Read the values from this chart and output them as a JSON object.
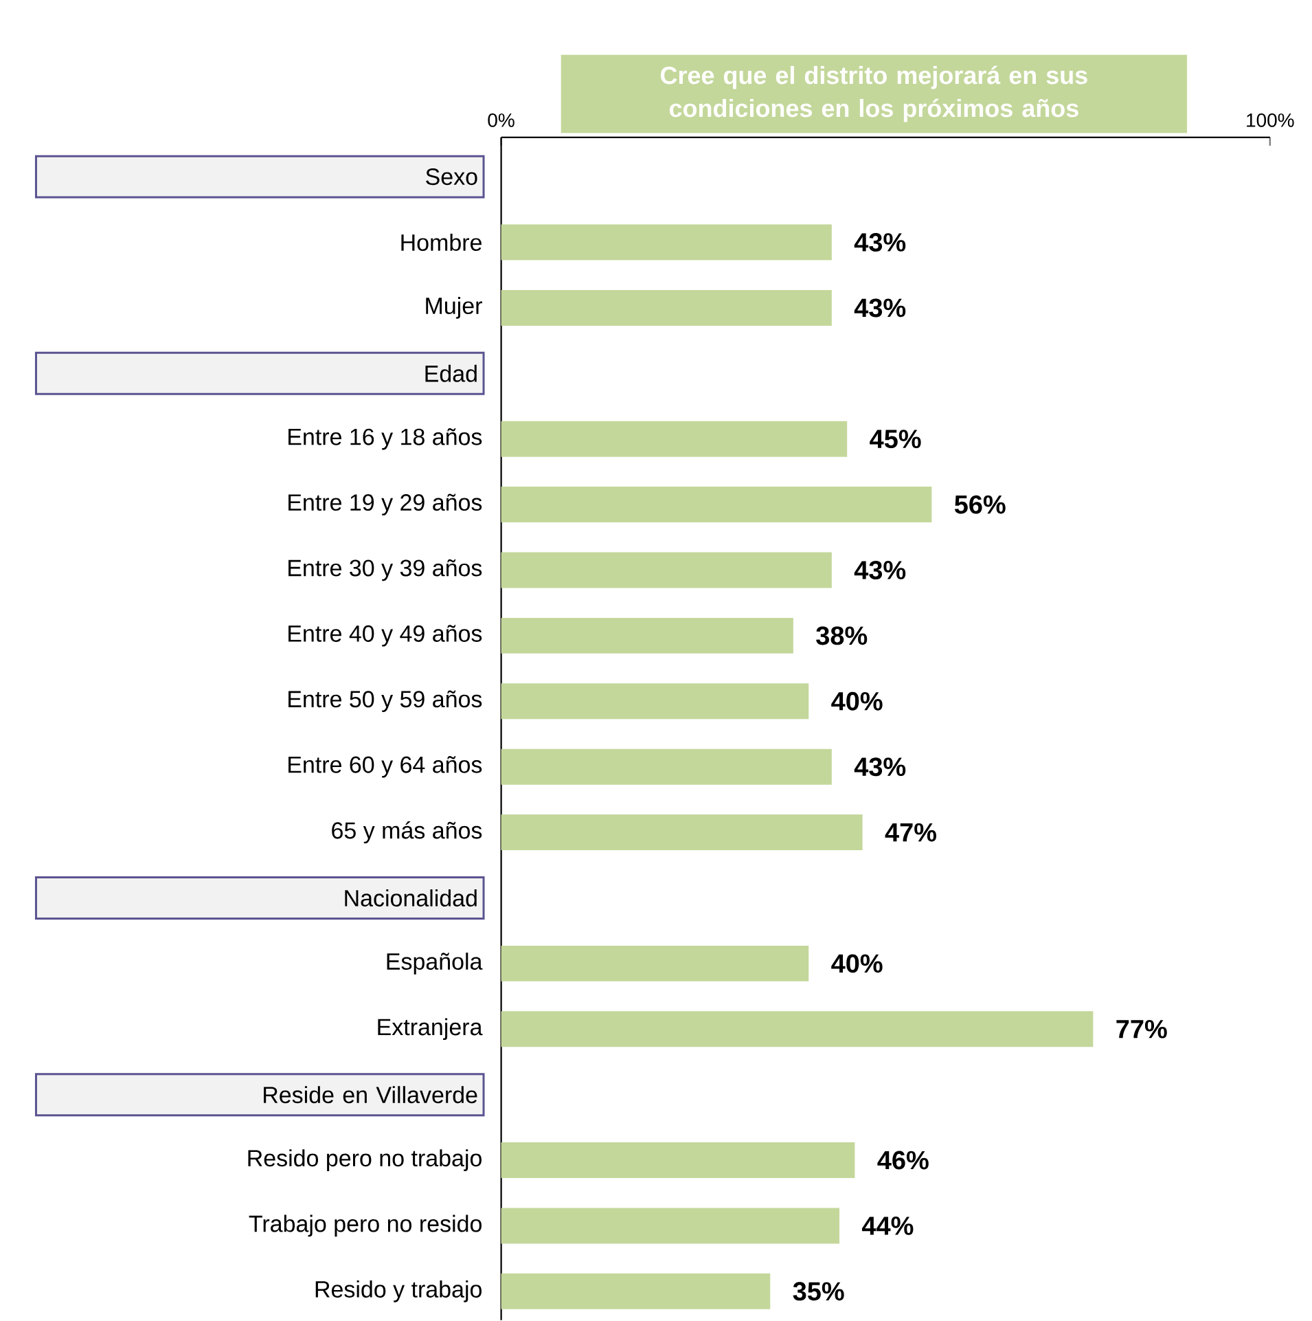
{
  "chart_data": {
    "type": "bar",
    "orientation": "horizontal",
    "title": "Cree que el distrito mejorará en sus condiciones en los próximos años",
    "categories": [
      "Sexo",
      "Hombre",
      "Mujer",
      "Edad",
      "Entre 16 y 18 años",
      "Entre 19 y 29 años",
      "Entre 30 y 39 años",
      "Entre 40 y 49 años",
      "Entre 50 y 59 años",
      "Entre 60 y 64 años",
      "65 y más años",
      "Nacionalidad",
      "Española",
      "Extranjera",
      "Reside en Villaverde",
      "Resido pero no trabajo",
      "Trabajo pero no resido",
      "Resido y trabajo"
    ],
    "values": [
      null,
      43,
      43,
      null,
      45,
      56,
      43,
      38,
      40,
      43,
      47,
      null,
      40,
      77,
      null,
      46,
      44,
      35
    ],
    "value_labels": [
      null,
      "43%",
      "43%",
      null,
      "45%",
      "56%",
      "43%",
      "38%",
      "40%",
      "43%",
      "47%",
      null,
      "40%",
      "77%",
      null,
      "46%",
      "44%",
      "35%"
    ],
    "color": "#c4d79b",
    "xlim": [
      0,
      100
    ],
    "xticks": [
      {
        "value": 0,
        "label": "0%"
      },
      {
        "value": 100,
        "label": "100%"
      }
    ]
  }
}
